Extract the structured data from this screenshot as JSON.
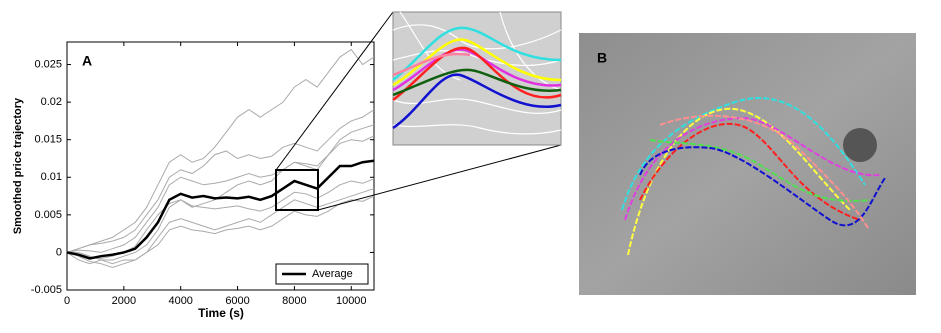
{
  "chart_data": [
    {
      "type": "line",
      "panel_label": "A",
      "ylabel": "Smoothed price trajectory",
      "xlabel": "Time (s)",
      "xlim": [
        0,
        10800
      ],
      "xticks": [
        0,
        2000,
        4000,
        6000,
        8000,
        10000
      ],
      "ylim": [
        -0.005,
        0.028
      ],
      "yticks": [
        -0.005,
        0,
        0.005,
        0.01,
        0.015,
        0.02,
        0.025
      ],
      "legend": "lower right",
      "x": [
        0,
        400,
        800,
        1200,
        1600,
        2000,
        2400,
        2800,
        3200,
        3600,
        4000,
        4400,
        4800,
        5200,
        5600,
        6000,
        6400,
        6800,
        7200,
        7600,
        8000,
        8400,
        8800,
        9200,
        9600,
        10000,
        10400,
        10800
      ],
      "series": [
        {
          "color": "#aaaaaa",
          "values": [
            0,
            0.0005,
            0.001,
            0.0015,
            0.002,
            0.003,
            0.004,
            0.006,
            0.009,
            0.012,
            0.013,
            0.012,
            0.0125,
            0.014,
            0.016,
            0.018,
            0.019,
            0.018,
            0.019,
            0.02,
            0.022,
            0.023,
            0.022,
            0.024,
            0.026,
            0.027,
            0.025,
            0.026
          ]
        },
        {
          "color": "#aaaaaa",
          "values": [
            0,
            -0.001,
            -0.0015,
            -0.001,
            -0.001,
            -0.0005,
            0,
            0.001,
            0.003,
            0.006,
            0.007,
            0.006,
            0.0065,
            0.007,
            0.008,
            0.009,
            0.0095,
            0.009,
            0.0095,
            0.011,
            0.012,
            0.0115,
            0.011,
            0.013,
            0.015,
            0.016,
            0.0165,
            0.017
          ]
        },
        {
          "color": "#aaaaaa",
          "values": [
            0,
            0,
            -0.0005,
            -0.001,
            -0.0015,
            -0.001,
            -0.001,
            0,
            0.002,
            0.004,
            0.0045,
            0.004,
            0.0035,
            0.003,
            0.0035,
            0.004,
            0.0045,
            0.004,
            0.005,
            0.006,
            0.007,
            0.0065,
            0.006,
            0.0065,
            0.007,
            0.0075,
            0.008,
            0.0085
          ]
        },
        {
          "color": "#aaaaaa",
          "values": [
            0,
            0.0003,
            0.0002,
            0,
            0.0005,
            0.001,
            0.002,
            0.004,
            0.006,
            0.009,
            0.01,
            0.0095,
            0.009,
            0.0092,
            0.0095,
            0.01,
            0.0105,
            0.01,
            0.0103,
            0.011,
            0.012,
            0.0118,
            0.0115,
            0.013,
            0.0145,
            0.015,
            0.0148,
            0.0155
          ]
        },
        {
          "color": "#aaaaaa",
          "values": [
            0,
            -0.0005,
            -0.0012,
            -0.0015,
            -0.002,
            -0.0015,
            -0.001,
            0,
            0.001,
            0.003,
            0.0035,
            0.003,
            0.0028,
            0.0025,
            0.003,
            0.0032,
            0.0035,
            0.003,
            0.0035,
            0.0045,
            0.0055,
            0.005,
            0.0048,
            0.0055,
            0.0065,
            0.007,
            0.0068,
            0.0075
          ]
        },
        {
          "color": "#aaaaaa",
          "values": [
            0,
            0.0005,
            0.001,
            0.0012,
            0.0015,
            0.002,
            0.003,
            0.005,
            0.007,
            0.01,
            0.011,
            0.0105,
            0.0115,
            0.013,
            0.0135,
            0.0125,
            0.013,
            0.0125,
            0.0128,
            0.014,
            0.0145,
            0.014,
            0.0135,
            0.015,
            0.0165,
            0.0175,
            0.018,
            0.019
          ]
        },
        {
          "color": "#aaaaaa",
          "values": [
            0,
            -0.0002,
            -0.0006,
            -0.0008,
            -0.0005,
            0,
            0.0008,
            0.003,
            0.005,
            0.0065,
            0.007,
            0.0062,
            0.006,
            0.0058,
            0.006,
            0.0062,
            0.0058,
            0.0055,
            0.006,
            0.007,
            0.008,
            0.0078,
            0.0072,
            0.008,
            0.009,
            0.0095,
            0.0092,
            0.0098
          ]
        },
        {
          "name": "Average",
          "color": "#000000",
          "width": 2.5,
          "values": [
            0,
            -0.0003,
            -0.0008,
            -0.0005,
            -0.0003,
            0,
            0.0005,
            0.002,
            0.004,
            0.007,
            0.0078,
            0.0073,
            0.0075,
            0.0072,
            0.0073,
            0.0072,
            0.0074,
            0.007,
            0.0075,
            0.0085,
            0.0095,
            0.009,
            0.0085,
            0.01,
            0.0115,
            0.0115,
            0.012,
            0.0122
          ]
        }
      ]
    }
  ],
  "panel_b": {
    "label": "B"
  }
}
